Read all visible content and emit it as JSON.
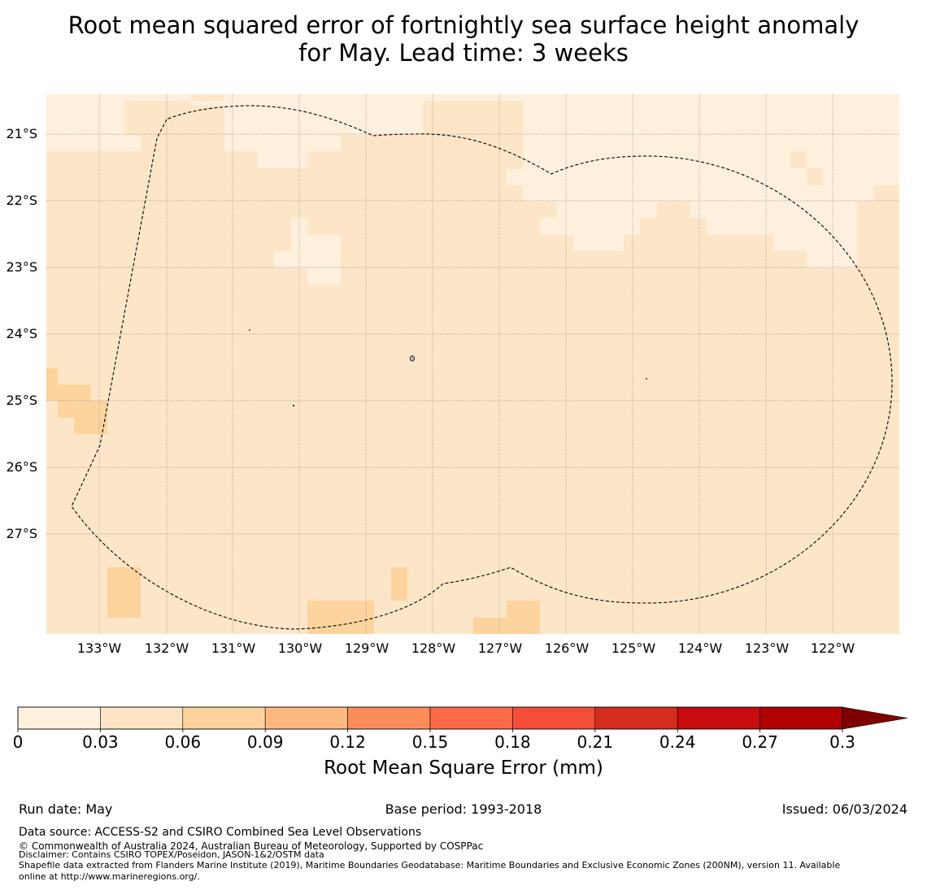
{
  "title_line1": "Root mean squared error of fortnightly sea surface height anomaly",
  "title_line2": "for May. Lead time: 3 weeks",
  "map": {
    "lat_labels": [
      "21°S",
      "22°S",
      "23°S",
      "24°S",
      "25°S",
      "26°S",
      "27°S"
    ],
    "lon_labels": [
      "133°W",
      "132°W",
      "131°W",
      "130°W",
      "129°W",
      "128°W",
      "127°W",
      "126°W",
      "125°W",
      "124°W",
      "123°W",
      "122°W"
    ],
    "background_color": "#fde6c8",
    "cell_colors": {
      "low": "#fef0dd",
      "mid": "#fde6c8",
      "high": "#fdd49e"
    },
    "boundary_style": "dashed"
  },
  "colorbar": {
    "ticks": [
      "0",
      "0.03",
      "0.06",
      "0.09",
      "0.12",
      "0.15",
      "0.18",
      "0.21",
      "0.24",
      "0.27",
      "0.3"
    ],
    "colors": [
      "#fef0dd",
      "#fde4c4",
      "#fdd29c",
      "#fdb97e",
      "#fc8d59",
      "#fc6b48",
      "#f44d38",
      "#d52d1f",
      "#c80b0f",
      "#b00000",
      "#7f0000"
    ],
    "extend": "max",
    "label": "Root Mean Square Error (mm)"
  },
  "footer": {
    "run_date": "Run date: May",
    "base_period": "Base period: 1993-2018",
    "issued": "Issued: 06/03/2024",
    "data_source": "Data source: ACCESS-S2 and CSIRO Combined Sea Level Observations",
    "copyright": "© Commonwealth of Australia 2024, Australian Bureau of Meteorology, Supported by COSPPac",
    "disclaimer": "Disclaimer: Contains CSIRO TOPEX/Poseidon, JASON-1&2/OSTM data",
    "shapefile_line1": "Shapefile data extracted from Flanders Marine Institute (2019), Maritime Boundaries Geodatabase: Maritime Boundaries and Exclusive Economic Zones (200NM), version 11. Available",
    "shapefile_line2": "online at http://www.marineregions.org/."
  }
}
